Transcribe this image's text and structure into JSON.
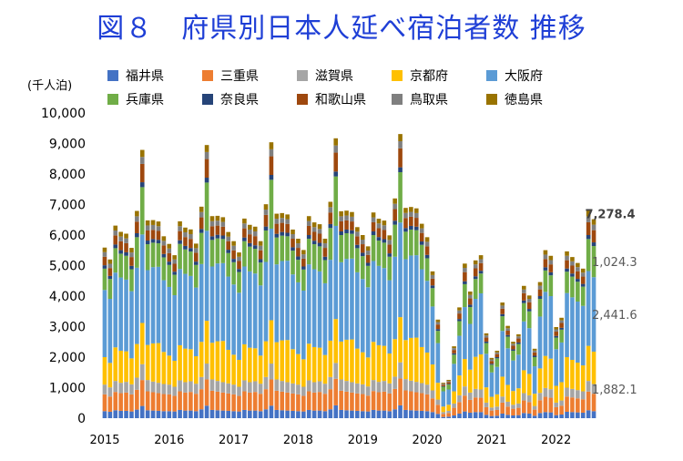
{
  "page_title": "図８　府県別日本人延べ宿泊者数 推移",
  "colors": {
    "title": "#1f3fd6",
    "axis_text": "#000000",
    "gridline": "#d9d9d9",
    "annotation": "#595959",
    "annotation_bold": "#404040"
  },
  "chart_data": {
    "type": "bar",
    "stacked": true,
    "title": "図８　府県別日本人延べ宿泊者数 推移",
    "ylabel": "(千人泊)",
    "ylim": [
      0,
      10000
    ],
    "yticks": [
      0,
      1000,
      2000,
      3000,
      4000,
      5000,
      6000,
      7000,
      8000,
      9000,
      10000
    ],
    "ytick_labels": [
      "0",
      "1,000",
      "2,000",
      "3,000",
      "4,000",
      "5,000",
      "6,000",
      "7,000",
      "8,000",
      "9,000",
      "10,000"
    ],
    "grid": false,
    "legend_placement": "top",
    "x_start": "2015-01",
    "x_end": "2022-08",
    "x_label_years": [
      "2015",
      "2016",
      "2017",
      "2018",
      "2019",
      "2020",
      "2021",
      "2022"
    ],
    "categories": [
      "2015-01",
      "2015-02",
      "2015-03",
      "2015-04",
      "2015-05",
      "2015-06",
      "2015-07",
      "2015-08",
      "2015-09",
      "2015-10",
      "2015-11",
      "2015-12",
      "2016-01",
      "2016-02",
      "2016-03",
      "2016-04",
      "2016-05",
      "2016-06",
      "2016-07",
      "2016-08",
      "2016-09",
      "2016-10",
      "2016-11",
      "2016-12",
      "2017-01",
      "2017-02",
      "2017-03",
      "2017-04",
      "2017-05",
      "2017-06",
      "2017-07",
      "2017-08",
      "2017-09",
      "2017-10",
      "2017-11",
      "2017-12",
      "2018-01",
      "2018-02",
      "2018-03",
      "2018-04",
      "2018-05",
      "2018-06",
      "2018-07",
      "2018-08",
      "2018-09",
      "2018-10",
      "2018-11",
      "2018-12",
      "2019-01",
      "2019-02",
      "2019-03",
      "2019-04",
      "2019-05",
      "2019-06",
      "2019-07",
      "2019-08",
      "2019-09",
      "2019-10",
      "2019-11",
      "2019-12",
      "2020-01",
      "2020-02",
      "2020-03",
      "2020-04",
      "2020-05",
      "2020-06",
      "2020-07",
      "2020-08",
      "2020-09",
      "2020-10",
      "2020-11",
      "2020-12",
      "2021-01",
      "2021-02",
      "2021-03",
      "2021-04",
      "2021-05",
      "2021-06",
      "2021-07",
      "2021-08",
      "2021-09",
      "2021-10",
      "2021-11",
      "2021-12",
      "2022-01",
      "2022-02",
      "2022-03",
      "2022-04",
      "2022-05",
      "2022-06",
      "2022-07",
      "2022-08"
    ],
    "series": [
      {
        "name": "福井県",
        "color": "#4472c4",
        "values": [
          230,
          210,
          260,
          240,
          240,
          220,
          280,
          400,
          260,
          250,
          240,
          230,
          230,
          220,
          270,
          250,
          250,
          230,
          290,
          410,
          270,
          260,
          250,
          240,
          230,
          220,
          270,
          250,
          250,
          230,
          290,
          410,
          270,
          260,
          250,
          240,
          230,
          220,
          270,
          250,
          250,
          230,
          290,
          420,
          270,
          260,
          250,
          240,
          230,
          220,
          270,
          250,
          250,
          230,
          290,
          420,
          270,
          260,
          250,
          240,
          230,
          200,
          140,
          40,
          50,
          90,
          150,
          220,
          180,
          200,
          200,
          110,
          70,
          80,
          150,
          110,
          90,
          100,
          170,
          150,
          80,
          170,
          200,
          190,
          100,
          120,
          210,
          200,
          190,
          180,
          260,
          230
        ]
      },
      {
        "name": "三重県",
        "color": "#ed7d31",
        "values": [
          550,
          500,
          600,
          580,
          600,
          560,
          650,
          850,
          620,
          600,
          580,
          560,
          550,
          510,
          610,
          590,
          610,
          570,
          660,
          860,
          630,
          610,
          590,
          570,
          550,
          510,
          610,
          590,
          610,
          570,
          660,
          860,
          630,
          610,
          590,
          570,
          550,
          510,
          610,
          590,
          610,
          570,
          660,
          870,
          630,
          610,
          590,
          570,
          560,
          520,
          620,
          600,
          620,
          580,
          670,
          880,
          640,
          620,
          600,
          580,
          550,
          450,
          300,
          100,
          120,
          250,
          380,
          520,
          420,
          480,
          470,
          250,
          180,
          190,
          360,
          270,
          220,
          240,
          410,
          380,
          200,
          420,
          500,
          480,
          260,
          290,
          500,
          480,
          460,
          440,
          610,
          570
        ]
      },
      {
        "name": "滋賀県",
        "color": "#a5a5a5",
        "values": [
          320,
          300,
          360,
          340,
          350,
          330,
          400,
          520,
          370,
          350,
          340,
          330,
          320,
          300,
          360,
          340,
          350,
          330,
          400,
          520,
          370,
          350,
          340,
          330,
          320,
          300,
          360,
          340,
          350,
          330,
          400,
          520,
          370,
          350,
          340,
          330,
          320,
          300,
          360,
          340,
          350,
          330,
          400,
          520,
          370,
          350,
          340,
          330,
          320,
          300,
          360,
          340,
          350,
          330,
          400,
          530,
          370,
          350,
          340,
          330,
          320,
          260,
          170,
          60,
          70,
          140,
          220,
          300,
          240,
          280,
          270,
          150,
          100,
          110,
          200,
          160,
          130,
          140,
          240,
          220,
          120,
          240,
          290,
          280,
          150,
          170,
          290,
          280,
          270,
          260,
          350,
          320
        ]
      },
      {
        "name": "京都府",
        "color": "#ffc000",
        "values": [
          900,
          800,
          1100,
          1050,
          1000,
          850,
          1100,
          1350,
          1150,
          1250,
          1300,
          1050,
          950,
          850,
          1150,
          1100,
          1050,
          900,
          1150,
          1400,
          1200,
          1300,
          1350,
          1100,
          980,
          880,
          1180,
          1130,
          1080,
          920,
          1170,
          1420,
          1220,
          1330,
          1380,
          1120,
          1000,
          900,
          1200,
          1150,
          1100,
          940,
          1190,
          1440,
          1240,
          1350,
          1400,
          1140,
          1050,
          950,
          1250,
          1200,
          1150,
          980,
          1230,
          1480,
          1280,
          1400,
          1450,
          1180,
          1050,
          850,
          550,
          180,
          200,
          400,
          650,
          900,
          750,
          1050,
          1150,
          500,
          350,
          400,
          650,
          550,
          450,
          500,
          750,
          700,
          400,
          800,
          1050,
          1000,
          550,
          600,
          1000,
          950,
          900,
          850,
          1150,
          1060
        ]
      },
      {
        "name": "大阪府",
        "color": "#5b9bd5",
        "values": [
          2200,
          2100,
          2450,
          2400,
          2350,
          2200,
          2500,
          2900,
          2450,
          2500,
          2500,
          2350,
          2250,
          2150,
          2500,
          2450,
          2400,
          2250,
          2550,
          2950,
          2500,
          2550,
          2550,
          2400,
          2300,
          2200,
          2550,
          2500,
          2450,
          2300,
          2600,
          3000,
          2550,
          2600,
          2600,
          2450,
          2350,
          2250,
          2600,
          2550,
          2500,
          2350,
          2650,
          3050,
          2600,
          2650,
          2650,
          2500,
          2400,
          2300,
          2650,
          2600,
          2550,
          2400,
          2700,
          3100,
          2650,
          2700,
          2700,
          2550,
          2350,
          1900,
          1300,
          500,
          500,
          900,
          1300,
          1700,
          1500,
          1900,
          2000,
          1100,
          800,
          900,
          1500,
          1200,
          1000,
          1100,
          1600,
          1500,
          900,
          1700,
          2100,
          2050,
          1200,
          1300,
          2100,
          2050,
          2000,
          1950,
          2450,
          2440
        ]
      },
      {
        "name": "兵庫県",
        "color": "#70ad47",
        "values": [
          700,
          650,
          800,
          780,
          780,
          720,
          1000,
          1550,
          850,
          800,
          770,
          750,
          720,
          670,
          820,
          800,
          800,
          740,
          1020,
          1580,
          870,
          820,
          790,
          770,
          730,
          680,
          830,
          810,
          810,
          750,
          1030,
          1600,
          880,
          830,
          800,
          780,
          740,
          690,
          840,
          820,
          820,
          760,
          1040,
          1620,
          890,
          840,
          810,
          790,
          750,
          700,
          850,
          830,
          830,
          770,
          1050,
          1650,
          900,
          850,
          820,
          800,
          740,
          600,
          400,
          150,
          160,
          300,
          480,
          750,
          550,
          650,
          650,
          350,
          250,
          280,
          480,
          380,
          320,
          350,
          600,
          550,
          300,
          580,
          700,
          680,
          380,
          420,
          700,
          680,
          650,
          630,
          1050,
          1020
        ]
      },
      {
        "name": "奈良県",
        "color": "#264478",
        "values": [
          110,
          100,
          120,
          115,
          115,
          110,
          130,
          160,
          120,
          120,
          115,
          110,
          110,
          100,
          120,
          115,
          115,
          110,
          130,
          160,
          120,
          120,
          115,
          110,
          110,
          100,
          120,
          115,
          115,
          110,
          130,
          160,
          120,
          120,
          115,
          110,
          110,
          100,
          120,
          115,
          115,
          110,
          130,
          160,
          120,
          120,
          115,
          110,
          110,
          100,
          120,
          115,
          115,
          110,
          130,
          160,
          120,
          120,
          115,
          110,
          110,
          90,
          60,
          20,
          25,
          45,
          70,
          95,
          80,
          90,
          90,
          50,
          35,
          40,
          70,
          55,
          45,
          50,
          85,
          80,
          45,
          90,
          105,
          100,
          55,
          60,
          105,
          100,
          95,
          90,
          130,
          120
        ]
      },
      {
        "name": "和歌山県",
        "color": "#9e480e",
        "values": [
          280,
          260,
          300,
          290,
          300,
          290,
          380,
          600,
          330,
          300,
          290,
          280,
          280,
          260,
          300,
          290,
          300,
          290,
          380,
          610,
          330,
          300,
          290,
          280,
          280,
          260,
          300,
          290,
          300,
          290,
          380,
          610,
          330,
          300,
          290,
          280,
          280,
          260,
          300,
          290,
          300,
          290,
          380,
          620,
          330,
          300,
          290,
          280,
          280,
          260,
          300,
          290,
          300,
          290,
          380,
          620,
          330,
          300,
          290,
          280,
          280,
          220,
          150,
          50,
          60,
          110,
          180,
          300,
          210,
          260,
          250,
          130,
          90,
          100,
          180,
          140,
          120,
          130,
          240,
          220,
          110,
          220,
          270,
          260,
          140,
          160,
          270,
          260,
          250,
          240,
          420,
          400
        ]
      },
      {
        "name": "鳥取県",
        "color": "#7f7f7f",
        "values": [
          150,
          140,
          160,
          155,
          155,
          150,
          175,
          230,
          165,
          160,
          155,
          150,
          150,
          140,
          160,
          155,
          155,
          150,
          175,
          230,
          165,
          160,
          155,
          150,
          150,
          140,
          160,
          155,
          155,
          150,
          175,
          230,
          165,
          160,
          155,
          150,
          150,
          140,
          160,
          155,
          155,
          150,
          175,
          235,
          165,
          160,
          155,
          150,
          150,
          140,
          160,
          155,
          155,
          150,
          175,
          235,
          165,
          160,
          155,
          150,
          150,
          120,
          80,
          30,
          35,
          60,
          100,
          140,
          110,
          130,
          130,
          70,
          50,
          55,
          100,
          80,
          65,
          70,
          120,
          110,
          60,
          120,
          145,
          140,
          75,
          85,
          145,
          140,
          135,
          130,
          190,
          180
        ]
      },
      {
        "name": "徳島県",
        "color": "#997300",
        "values": [
          150,
          140,
          160,
          155,
          155,
          150,
          175,
          230,
          165,
          160,
          155,
          150,
          150,
          140,
          160,
          155,
          155,
          150,
          175,
          230,
          165,
          160,
          155,
          150,
          150,
          140,
          160,
          155,
          155,
          150,
          175,
          230,
          165,
          160,
          155,
          150,
          150,
          140,
          160,
          155,
          155,
          150,
          175,
          235,
          165,
          160,
          155,
          150,
          150,
          140,
          160,
          155,
          155,
          150,
          175,
          235,
          165,
          160,
          155,
          150,
          150,
          120,
          80,
          30,
          35,
          60,
          100,
          140,
          110,
          130,
          130,
          70,
          50,
          55,
          100,
          80,
          65,
          70,
          120,
          110,
          60,
          120,
          145,
          140,
          75,
          85,
          145,
          140,
          135,
          130,
          190,
          180
        ]
      }
    ],
    "annotations": [
      {
        "text": "7,278.4",
        "bold": true
      },
      {
        "text": "1,024.3",
        "bold": false
      },
      {
        "text": "2,441.6",
        "bold": false
      },
      {
        "text": "1,882.1",
        "bold": false
      }
    ]
  }
}
